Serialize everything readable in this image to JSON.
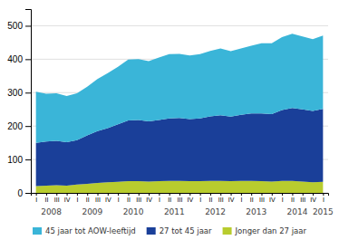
{
  "chart_data": {
    "type": "area",
    "stacked": true,
    "categories": [
      "I",
      "II",
      "III",
      "IV",
      "I",
      "II",
      "III",
      "IV",
      "I",
      "II",
      "III",
      "IV",
      "I",
      "II",
      "III",
      "IV",
      "I",
      "II",
      "III",
      "IV",
      "I",
      "II",
      "III",
      "IV",
      "I",
      "II",
      "III",
      "IV",
      "I"
    ],
    "annotations": [
      "2008",
      "2009",
      "2010",
      "2011",
      "2012",
      "2013",
      "2014",
      "2015"
    ],
    "series": [
      {
        "name": "Jonger dan 27 jaar",
        "color": "#b8cc2e",
        "values": [
          20,
          22,
          23,
          22,
          25,
          27,
          30,
          32,
          33,
          35,
          35,
          34,
          35,
          36,
          36,
          35,
          35,
          36,
          36,
          35,
          36,
          36,
          35,
          34,
          36,
          36,
          34,
          32,
          33
        ]
      },
      {
        "name": "27 tot 45 jaar",
        "color": "#1a3f99",
        "values": [
          130,
          132,
          133,
          130,
          133,
          145,
          155,
          162,
          172,
          182,
          183,
          180,
          183,
          187,
          188,
          186,
          188,
          193,
          196,
          193,
          198,
          202,
          203,
          202,
          212,
          218,
          216,
          213,
          218
        ]
      },
      {
        "name": "45 jaar tot AOW-leeftijd",
        "color": "#3ab5d8",
        "values": [
          153,
          143,
          142,
          138,
          140,
          146,
          156,
          164,
          172,
          182,
          182,
          180,
          187,
          192,
          192,
          190,
          192,
          196,
          200,
          196,
          198,
          202,
          210,
          212,
          218,
          222,
          218,
          215,
          220
        ]
      }
    ],
    "ylim": [
      0,
      550
    ],
    "yticks": [
      0,
      100,
      200,
      300,
      400,
      500
    ],
    "grid": true,
    "legend": "bottom"
  }
}
